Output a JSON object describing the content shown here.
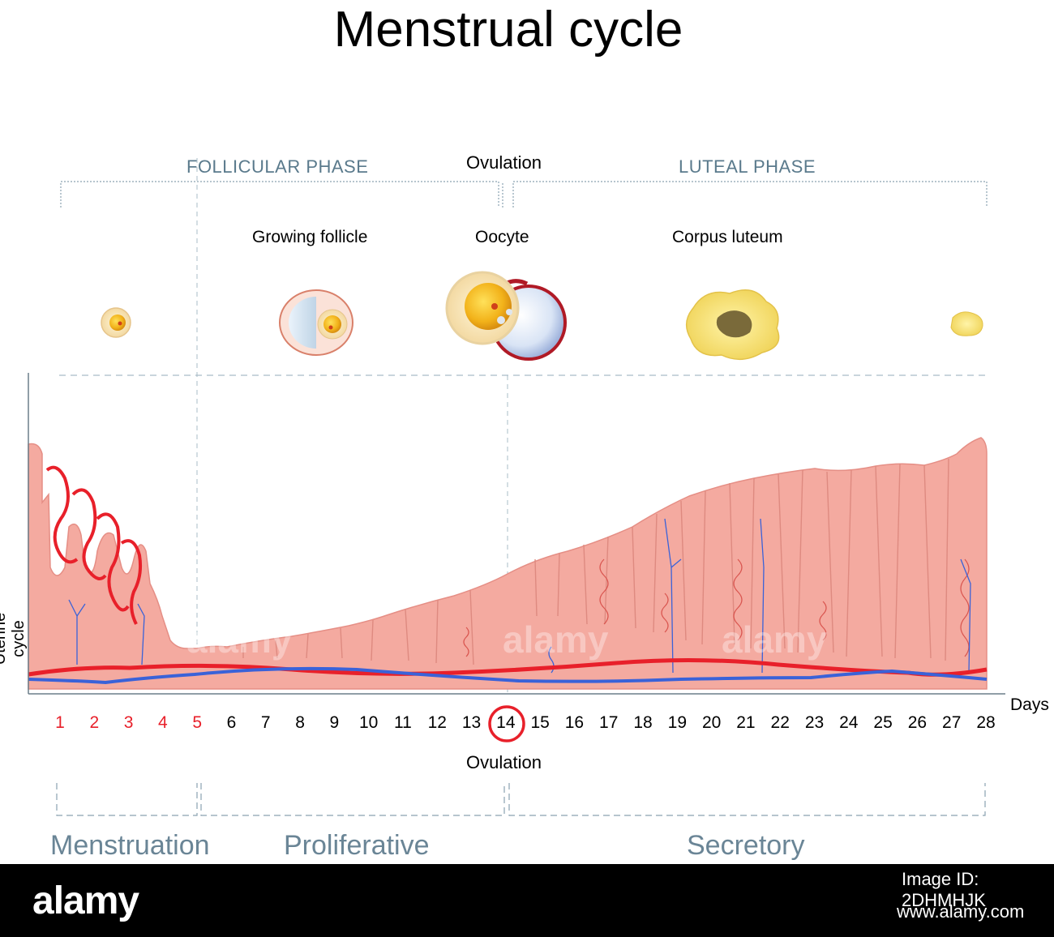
{
  "title": "Menstrual cycle",
  "phases_top": {
    "follicular": "FOLLICULAR PHASE",
    "ovulation": "Ovulation",
    "luteal": "LUTEAL PHASE"
  },
  "stages": {
    "growing_follicle": "Growing follicle",
    "oocyte": "Oocyte",
    "corpus_luteum": "Corpus luteum"
  },
  "axis": {
    "y_label": "Uterine cycle",
    "x_label": "Days",
    "days": [
      "1",
      "2",
      "3",
      "4",
      "5",
      "6",
      "7",
      "8",
      "9",
      "10",
      "11",
      "12",
      "13",
      "14",
      "15",
      "16",
      "17",
      "18",
      "19",
      "20",
      "21",
      "22",
      "23",
      "24",
      "25",
      "26",
      "27",
      "28"
    ],
    "highlighted_days": [
      "1",
      "2",
      "3",
      "4",
      "5"
    ],
    "circled_day": "14"
  },
  "ovulation_bottom": "Ovulation",
  "phases_bottom": {
    "menstruation": "Menstruation",
    "proliferative": "Proliferative",
    "secretory": "Secretory"
  },
  "watermark": "alamy",
  "footer": {
    "logo": "alamy",
    "image_id": "Image ID: 2DHMHJK",
    "url": "www.alamy.com"
  },
  "colors": {
    "tissue": "#f4aaa0",
    "tissue_edge": "#e58e85",
    "artery": "#e8202a",
    "vein": "#3a62d8",
    "phase_text": "#5a7a8c",
    "menstrual_days": "#e8202a"
  }
}
